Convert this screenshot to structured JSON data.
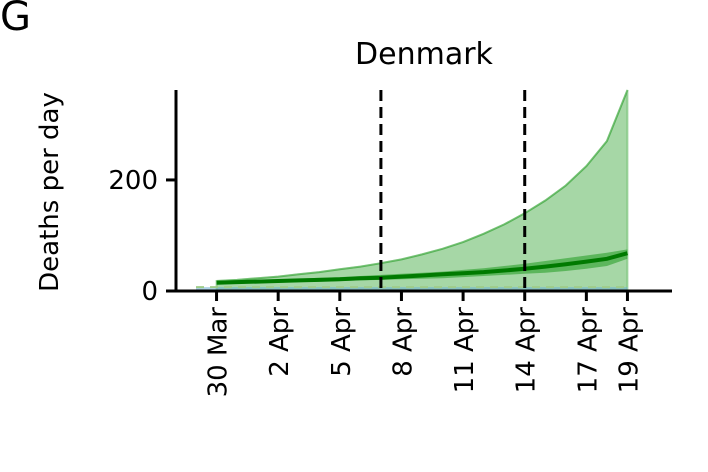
{
  "panel_label": "G",
  "chart_data": {
    "type": "area",
    "title": "Denmark",
    "xlabel": "",
    "ylabel": "Deaths per day",
    "x_tick_labels": [
      "30 Mar",
      "2 Apr",
      "5 Apr",
      "8 Apr",
      "11 Apr",
      "14 Apr",
      "17 Apr",
      "19 Apr"
    ],
    "x_tick_dates": [
      "2020-03-30",
      "2020-04-02",
      "2020-04-05",
      "2020-04-08",
      "2020-04-11",
      "2020-04-14",
      "2020-04-17",
      "2020-04-19"
    ],
    "y_ticks": [
      0,
      200
    ],
    "ylim": [
      0,
      380
    ],
    "xlim": [
      "2020-03-29",
      "2020-04-20"
    ],
    "vlines": [
      "2020-04-07",
      "2020-04-14"
    ],
    "grid": false,
    "x": [
      "2020-03-29",
      "2020-03-30",
      "2020-03-31",
      "2020-04-01",
      "2020-04-02",
      "2020-04-03",
      "2020-04-04",
      "2020-04-05",
      "2020-04-06",
      "2020-04-07",
      "2020-04-08",
      "2020-04-09",
      "2020-04-10",
      "2020-04-11",
      "2020-04-12",
      "2020-04-13",
      "2020-04-14",
      "2020-04-15",
      "2020-04-16",
      "2020-04-17",
      "2020-04-18",
      "2020-04-19"
    ],
    "series": [
      {
        "role": "wide band",
        "color": "#2ca02c",
        "lower": [
          0,
          0,
          0,
          0,
          0,
          0,
          0,
          0,
          0,
          0,
          0,
          0,
          0,
          0,
          0,
          0,
          0,
          0,
          0,
          0,
          0,
          0
        ],
        "upper": [
          null,
          18,
          20,
          23,
          26,
          30,
          34,
          39,
          44,
          50,
          57,
          66,
          76,
          88,
          103,
          120,
          140,
          163,
          190,
          225,
          270,
          362
        ]
      },
      {
        "role": "narrow band",
        "color": "#2ca02c",
        "lower": [
          null,
          12,
          13,
          14,
          15,
          16,
          17,
          18,
          19,
          20,
          21,
          22,
          23,
          25,
          27,
          29,
          31,
          33,
          36,
          40,
          45,
          58
        ],
        "upper": [
          null,
          18,
          19,
          20,
          21,
          22,
          24,
          25,
          27,
          29,
          31,
          33,
          35,
          38,
          41,
          45,
          49,
          54,
          59,
          64,
          69,
          75
        ]
      },
      {
        "role": "median",
        "color": "#007a00",
        "values": [
          null,
          15,
          16,
          17,
          18,
          19,
          20,
          21,
          23,
          24,
          26,
          28,
          30,
          32,
          34,
          37,
          40,
          44,
          48,
          53,
          58,
          68
        ]
      },
      {
        "role": "observed band",
        "color": "#6baed6",
        "lower": [
          0,
          0,
          0,
          0,
          0,
          0,
          0,
          0,
          0,
          0,
          0,
          0,
          0,
          0,
          0,
          0,
          0,
          0,
          0,
          0,
          0,
          0
        ],
        "upper": [
          7,
          7,
          7,
          7,
          7,
          7,
          7,
          7,
          7,
          7,
          7,
          7,
          7,
          7,
          7,
          7,
          7,
          7,
          7,
          7,
          7,
          7
        ]
      }
    ]
  }
}
